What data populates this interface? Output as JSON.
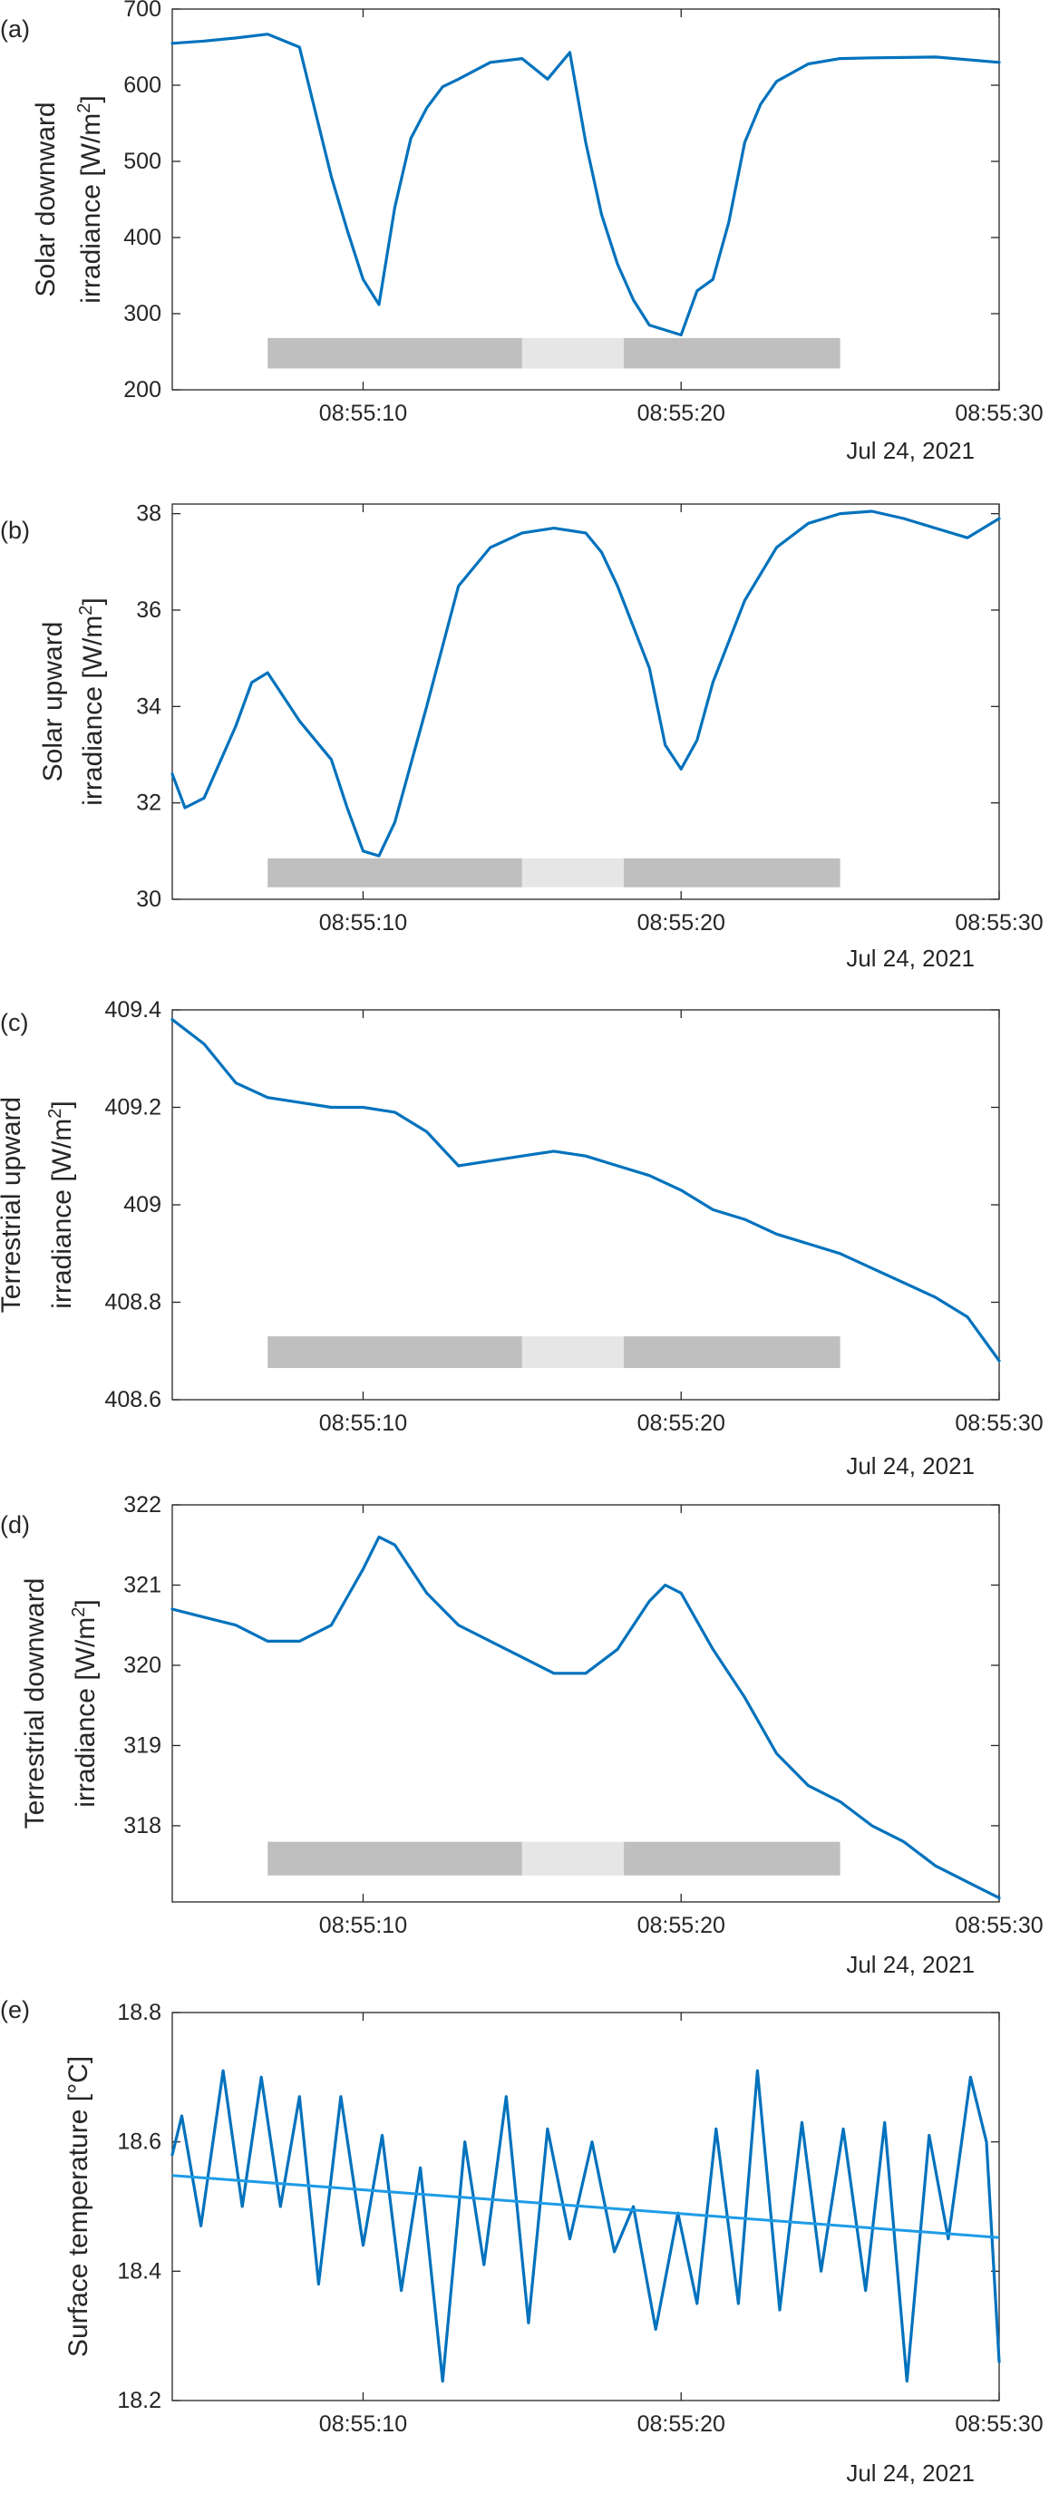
{
  "colors": {
    "series": "#0072BD",
    "trend": "#1E9BE6",
    "bar_dark": "#BFBFBF",
    "bar_light": "#E6E6E6",
    "axis": "#262626"
  },
  "chart_data": [
    {
      "panel": "(a)",
      "type": "line",
      "ylabel_lines": [
        "Solar downward",
        "irradiance [W/m²]"
      ],
      "xlim_seconds": [
        4,
        30
      ],
      "ylim": [
        200,
        700
      ],
      "yticks": [
        200,
        300,
        400,
        500,
        600,
        700
      ],
      "ytick_labels": [
        "200",
        "300",
        "400",
        "500",
        "600",
        "700"
      ],
      "xticks_seconds": [
        10,
        20,
        30
      ],
      "xtick_labels": [
        "08:55:10",
        "08:55:20",
        "08:55:30"
      ],
      "date_label": "Jul 24, 2021",
      "grid": false,
      "series": [
        {
          "x_seconds": [
            4,
            5,
            6,
            7,
            8,
            9,
            9.5,
            10,
            10.5,
            11,
            11.5,
            12,
            12.5,
            13,
            14,
            15,
            15.8,
            16.5,
            17,
            17.5,
            18,
            18.5,
            19,
            20,
            20.5,
            21,
            21.5,
            22,
            22.5,
            23,
            24,
            25,
            26,
            28,
            30
          ],
          "y": [
            655,
            658,
            662,
            667,
            650,
            480,
            410,
            345,
            312,
            440,
            530,
            570,
            598,
            608,
            630,
            635,
            608,
            643,
            525,
            430,
            365,
            318,
            285,
            272,
            330,
            345,
            420,
            525,
            575,
            605,
            628,
            635,
            636,
            637,
            630
          ]
        }
      ],
      "bars": [
        {
          "start_s": 7.0,
          "end_s": 15.0,
          "shade": "dark"
        },
        {
          "start_s": 15.0,
          "end_s": 18.2,
          "shade": "light"
        },
        {
          "start_s": 18.2,
          "end_s": 25.0,
          "shade": "dark"
        }
      ],
      "bar_y": [
        228,
        268
      ]
    },
    {
      "panel": "(b)",
      "type": "line",
      "ylabel_lines": [
        "Solar upward",
        "irradiance [W/m²]"
      ],
      "xlim_seconds": [
        4,
        30
      ],
      "ylim": [
        30,
        38.2
      ],
      "yticks": [
        30,
        32,
        34,
        36,
        38
      ],
      "ytick_labels": [
        "30",
        "32",
        "34",
        "36",
        "38"
      ],
      "xticks_seconds": [
        10,
        20,
        30
      ],
      "xtick_labels": [
        "08:55:10",
        "08:55:20",
        "08:55:30"
      ],
      "date_label": "Jul 24, 2021",
      "grid": false,
      "series": [
        {
          "x_seconds": [
            4,
            4.4,
            5,
            6,
            6.5,
            7,
            7.5,
            8,
            9,
            9.5,
            10,
            10.5,
            11,
            12,
            13,
            14,
            15,
            16,
            17,
            17.5,
            18,
            19,
            19.5,
            20,
            20.5,
            21,
            22,
            23,
            24,
            25,
            26,
            27,
            28,
            29,
            30
          ],
          "y": [
            32.6,
            31.9,
            32.1,
            33.6,
            34.5,
            34.7,
            34.2,
            33.7,
            32.9,
            31.9,
            31.0,
            30.9,
            31.6,
            34.0,
            36.5,
            37.3,
            37.6,
            37.7,
            37.6,
            37.2,
            36.5,
            34.8,
            33.2,
            32.7,
            33.3,
            34.5,
            36.2,
            37.3,
            37.8,
            38.0,
            38.05,
            37.9,
            37.7,
            37.5,
            37.9
          ]
        }
      ],
      "bars": [
        {
          "start_s": 7.0,
          "end_s": 15.0,
          "shade": "dark"
        },
        {
          "start_s": 15.0,
          "end_s": 18.2,
          "shade": "light"
        },
        {
          "start_s": 18.2,
          "end_s": 25.0,
          "shade": "dark"
        }
      ],
      "bar_y": [
        30.25,
        30.85
      ]
    },
    {
      "panel": "(c)",
      "type": "line",
      "ylabel_lines": [
        "Terrestrial upward",
        "irradiance [W/m²]"
      ],
      "xlim_seconds": [
        4,
        30
      ],
      "ylim": [
        408.6,
        409.4
      ],
      "yticks": [
        408.6,
        408.8,
        409,
        409.2,
        409.4
      ],
      "ytick_labels": [
        "408.6",
        "408.8",
        "409",
        "409.2",
        "409.4"
      ],
      "xticks_seconds": [
        10,
        20,
        30
      ],
      "xtick_labels": [
        "08:55:10",
        "08:55:20",
        "08:55:30"
      ],
      "date_label": "Jul 24, 2021",
      "grid": false,
      "series": [
        {
          "x_seconds": [
            4,
            5,
            6,
            7,
            8,
            9,
            10,
            11,
            12,
            13,
            14,
            15,
            16,
            17,
            18,
            19,
            20,
            21,
            22,
            23,
            24,
            25,
            26,
            27,
            28,
            29,
            30
          ],
          "y": [
            409.38,
            409.33,
            409.25,
            409.22,
            409.21,
            409.2,
            409.2,
            409.19,
            409.15,
            409.08,
            409.09,
            409.1,
            409.11,
            409.1,
            409.08,
            409.06,
            409.03,
            408.99,
            408.97,
            408.94,
            408.92,
            408.9,
            408.87,
            408.84,
            408.81,
            408.77,
            408.68
          ]
        }
      ],
      "bars": [
        {
          "start_s": 7.0,
          "end_s": 15.0,
          "shade": "dark"
        },
        {
          "start_s": 15.0,
          "end_s": 18.2,
          "shade": "light"
        },
        {
          "start_s": 18.2,
          "end_s": 25.0,
          "shade": "dark"
        }
      ],
      "bar_y": [
        408.665,
        408.73
      ]
    },
    {
      "panel": "(d)",
      "type": "line",
      "ylabel_lines": [
        "Terrestrial downward",
        "irradiance [W/m²]"
      ],
      "xlim_seconds": [
        4,
        30
      ],
      "ylim": [
        317.05,
        322
      ],
      "yticks": [
        318,
        319,
        320,
        321,
        322
      ],
      "ytick_labels": [
        "318",
        "319",
        "320",
        "321",
        "322"
      ],
      "xticks_seconds": [
        10,
        20,
        30
      ],
      "xtick_labels": [
        "08:55:10",
        "08:55:20",
        "08:55:30"
      ],
      "date_label": "Jul 24, 2021",
      "grid": false,
      "series": [
        {
          "x_seconds": [
            4,
            5,
            6,
            7,
            8,
            9,
            10,
            10.5,
            11,
            12,
            13,
            14,
            15,
            16,
            17,
            18,
            19,
            19.5,
            20,
            21,
            22,
            23,
            24,
            25,
            26,
            27,
            28,
            29,
            30
          ],
          "y": [
            320.7,
            320.6,
            320.5,
            320.3,
            320.3,
            320.5,
            321.2,
            321.6,
            321.5,
            320.9,
            320.5,
            320.3,
            320.1,
            319.9,
            319.9,
            320.2,
            320.8,
            321.0,
            320.9,
            320.2,
            319.6,
            318.9,
            318.5,
            318.3,
            318.0,
            317.8,
            317.5,
            317.3,
            317.1
          ]
        }
      ],
      "bars": [
        {
          "start_s": 7.0,
          "end_s": 15.0,
          "shade": "dark"
        },
        {
          "start_s": 15.0,
          "end_s": 18.2,
          "shade": "light"
        },
        {
          "start_s": 18.2,
          "end_s": 25.0,
          "shade": "dark"
        }
      ],
      "bar_y": [
        317.38,
        317.8
      ]
    },
    {
      "panel": "(e)",
      "type": "line",
      "ylabel_lines": [
        "Surface temperature [°C]"
      ],
      "xlim_seconds": [
        4,
        30
      ],
      "ylim": [
        18.2,
        18.8
      ],
      "yticks": [
        18.2,
        18.4,
        18.6,
        18.8
      ],
      "ytick_labels": [
        "18.2",
        "18.4",
        "18.6",
        "18.8"
      ],
      "xticks_seconds": [
        10,
        20,
        30
      ],
      "xtick_labels": [
        "08:55:10",
        "08:55:20",
        "08:55:30"
      ],
      "date_label": "Jul 24, 2021",
      "grid": false,
      "series": [
        {
          "x_seconds": [
            4,
            4.3,
            4.9,
            5.6,
            6.2,
            6.8,
            7.4,
            8.0,
            8.6,
            9.3,
            10.0,
            10.6,
            11.2,
            11.8,
            12.5,
            13.2,
            13.8,
            14.5,
            15.2,
            15.8,
            16.5,
            17.2,
            17.9,
            18.5,
            19.2,
            19.9,
            20.5,
            21.1,
            21.8,
            22.4,
            23.1,
            23.8,
            24.4,
            25.1,
            25.8,
            26.4,
            27.1,
            27.8,
            28.4,
            29.1,
            29.6,
            30.0
          ],
          "y": [
            18.58,
            18.64,
            18.47,
            18.71,
            18.5,
            18.7,
            18.5,
            18.67,
            18.38,
            18.67,
            18.44,
            18.61,
            18.37,
            18.56,
            18.23,
            18.6,
            18.41,
            18.67,
            18.32,
            18.62,
            18.45,
            18.6,
            18.43,
            18.5,
            18.31,
            18.49,
            18.35,
            18.62,
            18.35,
            18.71,
            18.34,
            18.63,
            18.4,
            18.62,
            18.37,
            18.63,
            18.23,
            18.61,
            18.45,
            18.7,
            18.6,
            18.26
          ]
        }
      ],
      "trend": {
        "x_seconds": [
          4,
          30
        ],
        "y": [
          18.548,
          18.452
        ]
      }
    }
  ]
}
